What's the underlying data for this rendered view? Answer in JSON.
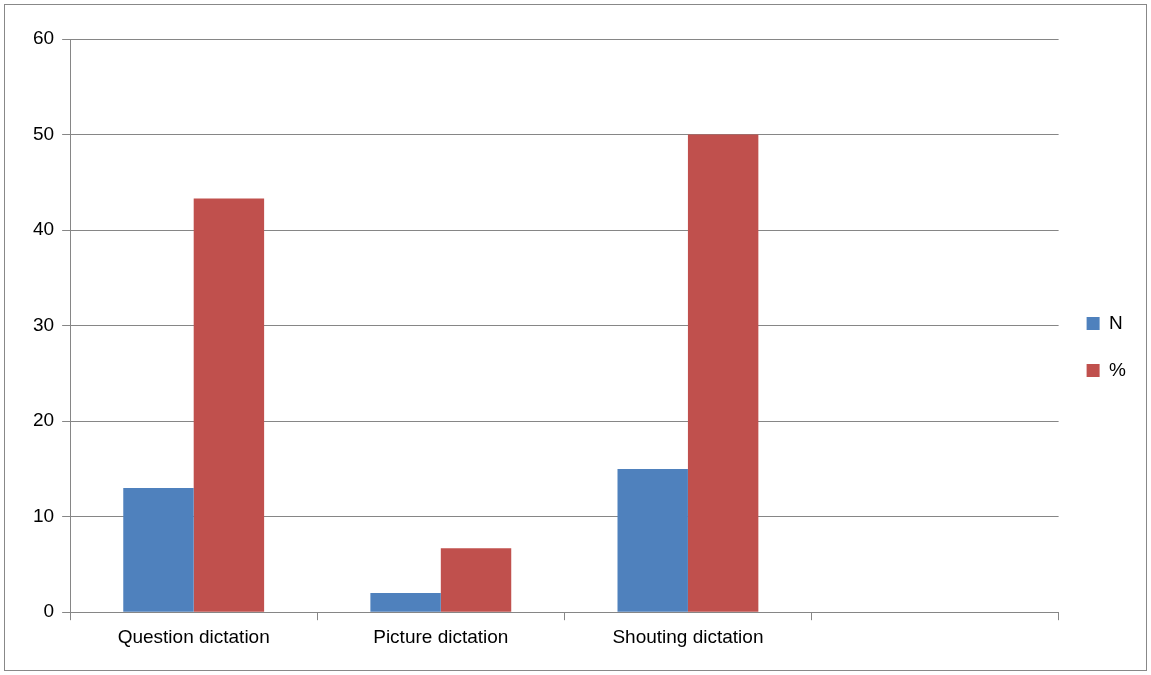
{
  "chart_data": {
    "type": "bar",
    "categories": [
      "Question dictation",
      "Picture dictation",
      "Shouting dictation",
      null
    ],
    "series": [
      {
        "name": "N",
        "color": "#4f81bd",
        "values": [
          13,
          2,
          15,
          null
        ]
      },
      {
        "name": "%",
        "color": "#c0504d",
        "values": [
          43.3,
          6.7,
          50,
          null
        ]
      }
    ],
    "ylim": [
      0,
      60
    ],
    "yticks": [
      0,
      10,
      20,
      30,
      40,
      50,
      60
    ],
    "grid": "y",
    "legend": "right"
  }
}
